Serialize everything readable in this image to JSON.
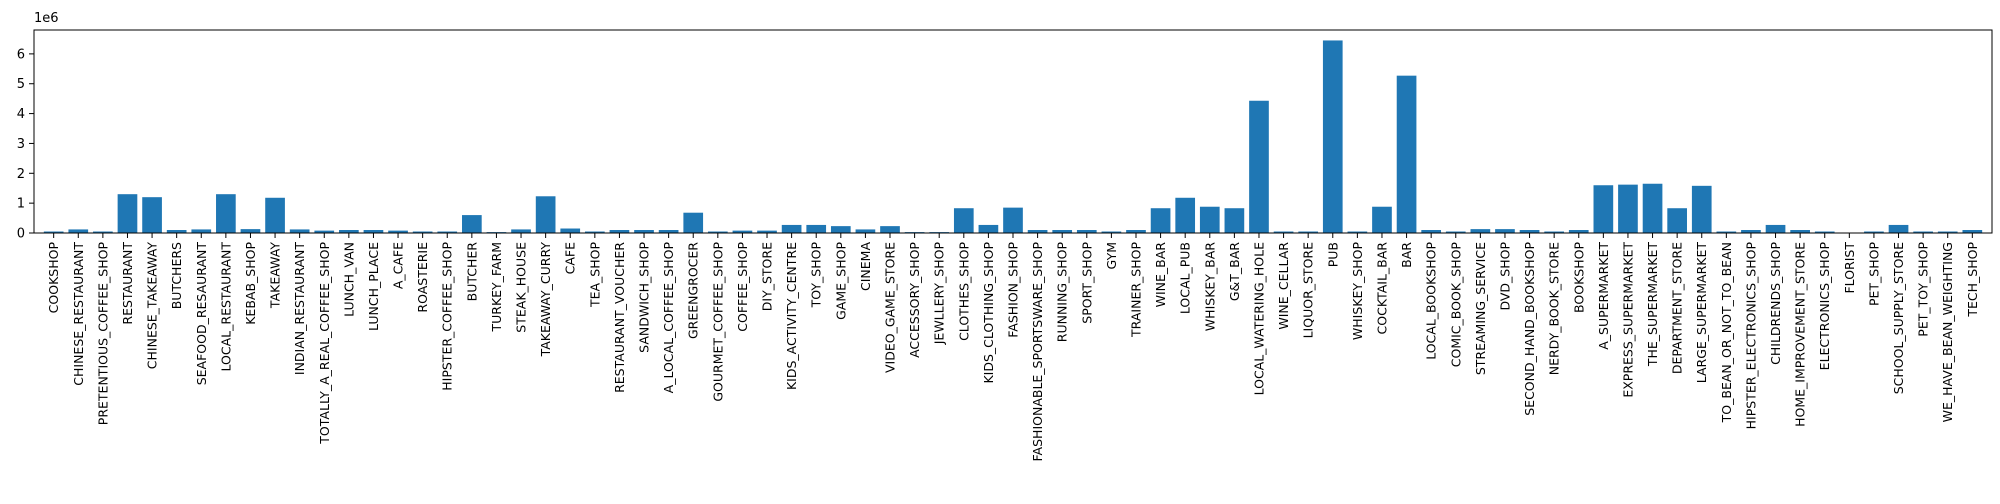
{
  "chart_data": {
    "type": "bar",
    "title": "",
    "xlabel": "",
    "ylabel": "",
    "offset_label": "1e6",
    "ylim": [
      0,
      6800000
    ],
    "yticks": [
      0,
      1000000,
      2000000,
      3000000,
      4000000,
      5000000,
      6000000
    ],
    "ytick_labels": [
      "0",
      "1",
      "2",
      "3",
      "4",
      "5",
      "6"
    ],
    "bar_color": "#1f77b4",
    "grid": false,
    "categories": [
      "COOKSHOP",
      "CHINESE_RESTAURANT",
      "PRETENTIOUS_COFFEE_SHOP",
      "RESTAURANT",
      "CHINESE_TAKEAWAY",
      "BUTCHERS",
      "SEAFOOD_RESAURANT",
      "LOCAL_RESTAURANT",
      "KEBAB_SHOP",
      "TAKEAWAY",
      "INDIAN_RESTAURANT",
      "TOTALLY_A_REAL_COFFEE_SHOP",
      "LUNCH_VAN",
      "LUNCH_PLACE",
      "A_CAFE",
      "ROASTERIE",
      "HIPSTER_COFFEE_SHOP",
      "BUTCHER",
      "TURKEY_FARM",
      "STEAK_HOUSE",
      "TAKEAWAY_CURRY",
      "CAFE",
      "TEA_SHOP",
      "RESTAURANT_VOUCHER",
      "SANDWICH_SHOP",
      "A_LOCAL_COFFEE_SHOP",
      "GREENGROCER",
      "GOURMET_COFFEE_SHOP",
      "COFFEE_SHOP",
      "DIY_STORE",
      "KIDS_ACTIVITY_CENTRE",
      "TOY_SHOP",
      "GAME_SHOP",
      "CINEMA",
      "VIDEO_GAME_STORE",
      "ACCESSORY_SHOP",
      "JEWLLERY_SHOP",
      "CLOTHES_SHOP",
      "KIDS_CLOTHING_SHOP",
      "FASHION_SHOP",
      "FASHIONABLE_SPORTSWARE_SHOP",
      "RUNNING_SHOP",
      "SPORT_SHOP",
      "GYM",
      "TRAINER_SHOP",
      "WINE_BAR",
      "LOCAL_PUB",
      "WHISKEY_BAR",
      "G&T_BAR",
      "LOCAL_WATERING_HOLE",
      "WINE_CELLAR",
      "LIQUOR_STORE",
      "PUB",
      "WHISKEY_SHOP",
      "COCKTAIL_BAR",
      "BAR",
      "LOCAL_BOOKSHOP",
      "COMIC_BOOK_SHOP",
      "STREAMING_SERVICE",
      "DVD_SHOP",
      "SECOND_HAND_BOOKSHOP",
      "NERDY_BOOK_STORE",
      "BOOKSHOP",
      "A_SUPERMARKET",
      "EXPRESS_SUPERMARKET",
      "THE_SUPERMARKET",
      "DEPARTMENT_STORE",
      "LARGE_SUPERMARKET",
      "TO_BEAN_OR_NOT_TO_BEAN",
      "HIPSTER_ELECTRONICS_SHOP",
      "CHILDRENDS_SHOP",
      "HOME_IMPROVEMENT_STORE",
      "ELECTRONICS_SHOP",
      "FLORIST",
      "PET_SHOP",
      "SCHOOL_SUPPLY_STORE",
      "PET_TOY_SHOP",
      "WE_HAVE_BEAN_WEIGHTING",
      "TECH_SHOP"
    ],
    "values": [
      50000,
      120000,
      50000,
      1300000,
      1200000,
      100000,
      120000,
      1300000,
      130000,
      1180000,
      120000,
      80000,
      100000,
      100000,
      80000,
      50000,
      50000,
      600000,
      30000,
      120000,
      1230000,
      150000,
      50000,
      100000,
      100000,
      100000,
      680000,
      50000,
      80000,
      80000,
      270000,
      270000,
      230000,
      120000,
      230000,
      30000,
      30000,
      830000,
      270000,
      850000,
      100000,
      100000,
      100000,
      50000,
      100000,
      830000,
      1180000,
      880000,
      830000,
      4430000,
      50000,
      50000,
      6450000,
      50000,
      880000,
      5270000,
      100000,
      50000,
      130000,
      130000,
      100000,
      50000,
      100000,
      1600000,
      1620000,
      1650000,
      830000,
      1580000,
      50000,
      100000,
      270000,
      100000,
      50000,
      0,
      50000,
      270000,
      50000,
      50000,
      100000
    ]
  }
}
